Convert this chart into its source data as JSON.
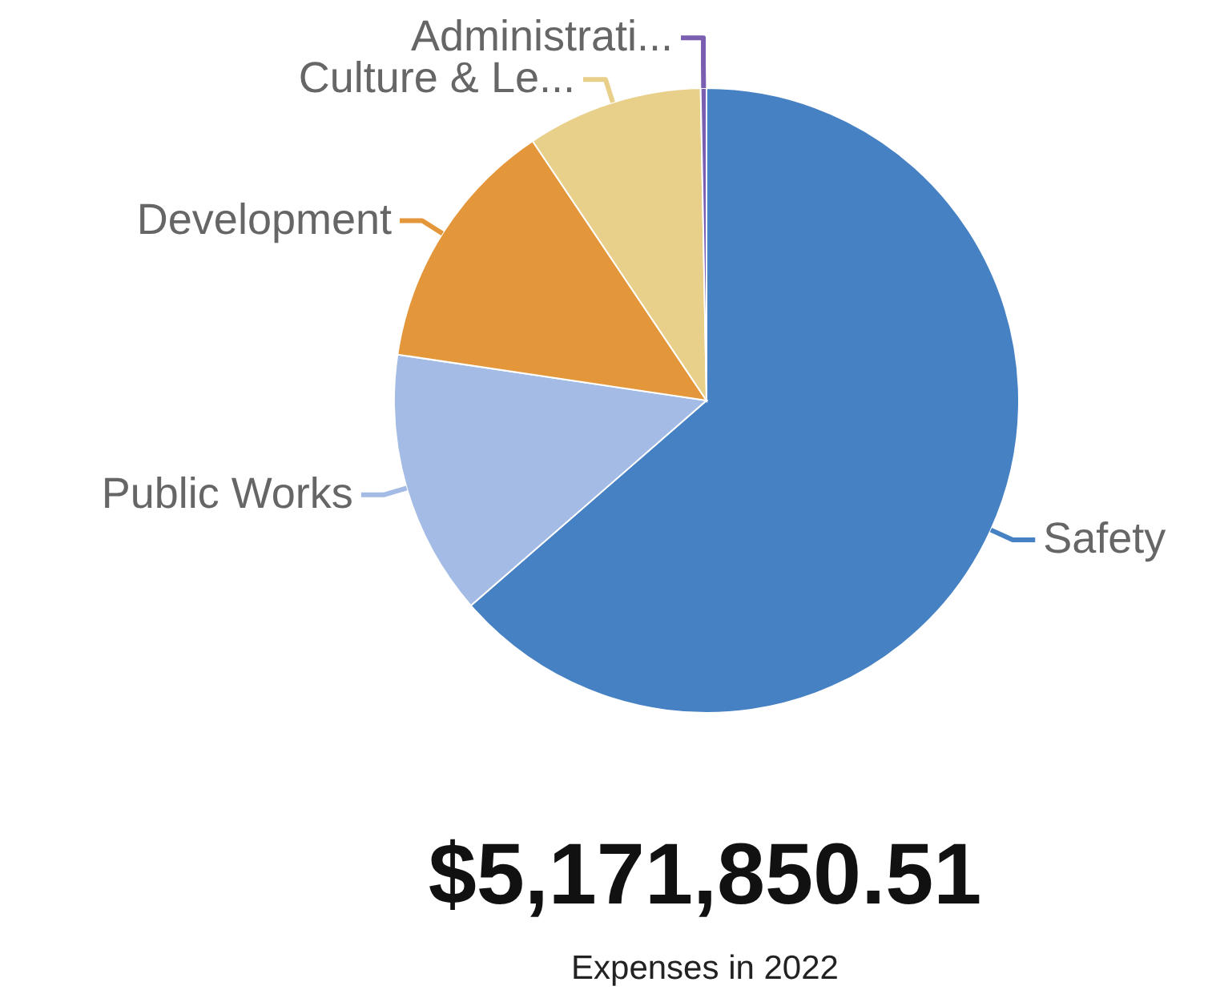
{
  "chart_data": {
    "type": "pie",
    "title": "$5,171,850.51",
    "subtitle": "Expenses in 2022",
    "categories": [
      "Safety",
      "Public Works",
      "Development",
      "Culture & Le...",
      "Administrati..."
    ],
    "values": [
      63.6,
      13.75,
      13.25,
      9.1,
      0.3
    ],
    "colors": [
      "#4581c3",
      "#a3bbe5",
      "#e4963a",
      "#e8cf8a",
      "#7a5fb0"
    ]
  }
}
